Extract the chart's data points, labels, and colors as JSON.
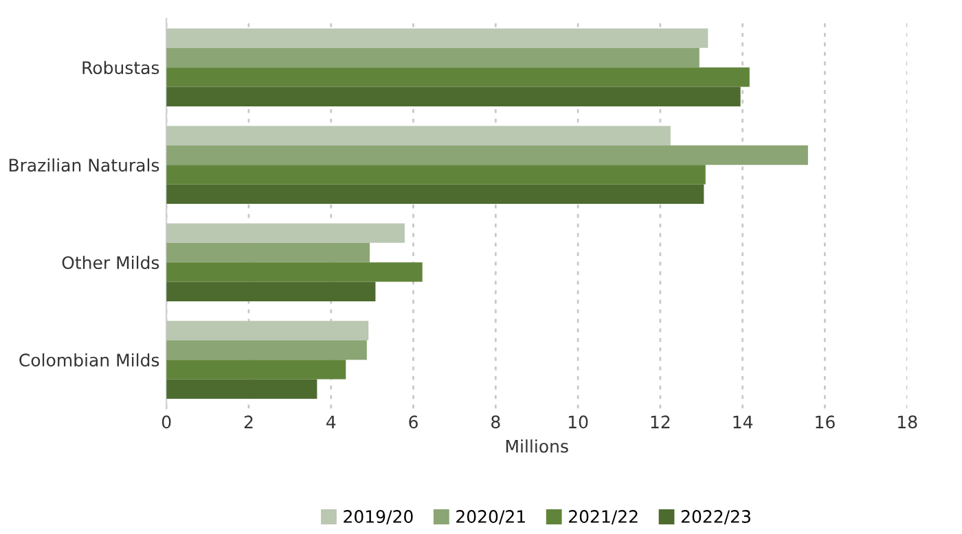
{
  "chart_data": {
    "type": "bar",
    "orientation": "horizontal",
    "xlabel": "Millions",
    "categories": [
      "Robustas",
      "Brazilian Naturals",
      "Other Milds",
      "Colombian Milds"
    ],
    "series": [
      {
        "name": "2019/20",
        "color": "#bac7b1",
        "values": [
          13.16,
          12.25,
          5.79,
          4.91
        ]
      },
      {
        "name": "2020/21",
        "color": "#8ba574",
        "values": [
          12.95,
          15.59,
          4.94,
          4.87
        ]
      },
      {
        "name": "2021/22",
        "color": "#61843b",
        "values": [
          14.17,
          13.1,
          6.22,
          4.36
        ]
      },
      {
        "name": "2022/23",
        "color": "#4d6b2e",
        "values": [
          13.95,
          13.06,
          5.08,
          3.66
        ]
      }
    ],
    "xlim": [
      0,
      18
    ],
    "xticks": [
      0,
      2,
      4,
      6,
      8,
      10,
      12,
      14,
      16,
      18
    ],
    "grid": "x",
    "legend": "bottom"
  }
}
